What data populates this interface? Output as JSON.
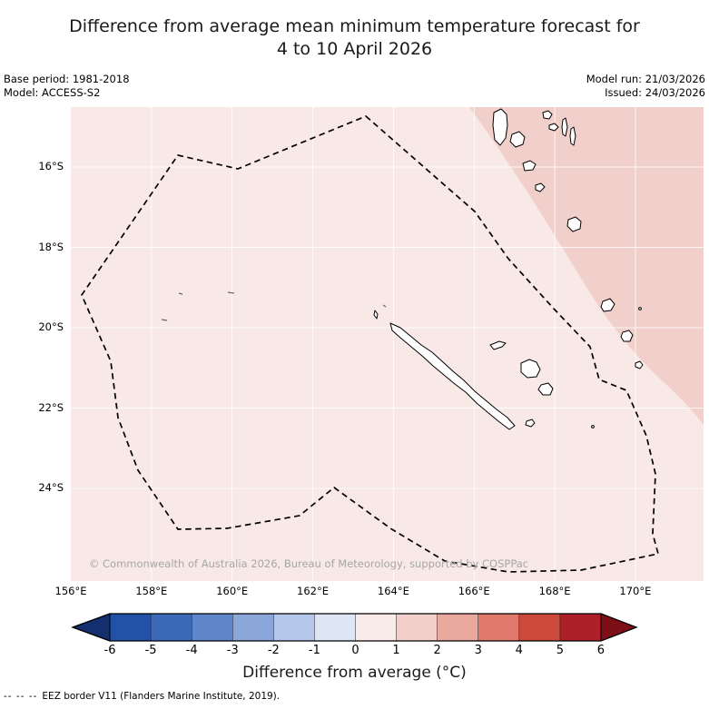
{
  "title": {
    "line1": "Difference from average mean minimum temperature forecast for",
    "line2": "4 to 10 April 2026"
  },
  "meta": {
    "base_period": "Base period: 1981-2018",
    "model": "Model: ACCESS-S2",
    "model_run": "Model run: 21/03/2026",
    "issued": "Issued: 24/03/2026"
  },
  "map": {
    "copyright": "© Commonwealth of Australia 2026, Bureau of Meteorology, supported by COSPPac",
    "y_ticks": [
      "16°S",
      "18°S",
      "20°S",
      "22°S",
      "24°S"
    ],
    "x_ticks": [
      "156°E",
      "158°E",
      "160°E",
      "162°E",
      "164°E",
      "166°E",
      "168°E",
      "170°E"
    ],
    "colors": {
      "background": "#f8e9e7",
      "anomaly_plus1_to_2": "#f1cfca",
      "grid": "#ffffff",
      "eez_border": "#000000",
      "land_fill": "#ffffff",
      "land_outline": "#000000",
      "copyright_gray": "#a6a6a6"
    }
  },
  "colorbar": {
    "label": "Difference from average (°C)",
    "ticks": [
      "-6",
      "-5",
      "-4",
      "-3",
      "-2",
      "-1",
      "0",
      "1",
      "2",
      "3",
      "4",
      "5",
      "6"
    ],
    "segment_colors": [
      "#2152a8",
      "#3d6ab8",
      "#5f86ca",
      "#8ba7da",
      "#b5c7ea",
      "#dde6f5",
      "#f8ebe9",
      "#f2cfca",
      "#eaa89f",
      "#e0796c",
      "#cb4a3c",
      "#ad2029"
    ],
    "left_arrow_color": "#142f6e",
    "right_arrow_color": "#7e0e17"
  },
  "footnote": {
    "dash_sample": "-- -- --",
    "text": "EEZ border V11 (Flanders Marine Institute, 2019)."
  }
}
